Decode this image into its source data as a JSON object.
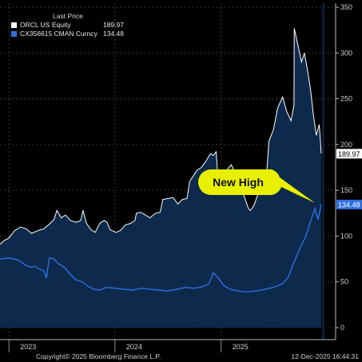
{
  "chart_data": {
    "type": "line",
    "legend_title": "Last Price",
    "series": [
      {
        "name": "ORCL US Equity",
        "last": "189.97",
        "last_label": "189.97",
        "color": "#ffffff",
        "fill": "#0d2a4d",
        "points": [
          [
            "2022-12-01",
            91
          ],
          [
            "2022-12-15",
            95
          ],
          [
            "2023-01-01",
            98
          ],
          [
            "2023-01-20",
            106
          ],
          [
            "2023-02-10",
            110
          ],
          [
            "2023-03-01",
            108
          ],
          [
            "2023-03-20",
            103
          ],
          [
            "2023-04-10",
            106
          ],
          [
            "2023-05-01",
            108
          ],
          [
            "2023-05-20",
            113
          ],
          [
            "2023-06-05",
            118
          ],
          [
            "2023-06-15",
            128
          ],
          [
            "2023-06-30",
            120
          ],
          [
            "2023-07-15",
            123
          ],
          [
            "2023-08-01",
            117
          ],
          [
            "2023-08-20",
            115
          ],
          [
            "2023-09-05",
            117
          ],
          [
            "2023-09-13",
            128
          ],
          [
            "2023-09-25",
            114
          ],
          [
            "2023-10-10",
            107
          ],
          [
            "2023-10-25",
            104
          ],
          [
            "2023-11-10",
            114
          ],
          [
            "2023-11-25",
            117
          ],
          [
            "2023-12-05",
            115
          ],
          [
            "2023-12-15",
            107
          ],
          [
            "2024-01-05",
            104
          ],
          [
            "2024-01-20",
            106
          ],
          [
            "2024-02-05",
            112
          ],
          [
            "2024-02-25",
            114
          ],
          [
            "2024-03-10",
            117
          ],
          [
            "2024-03-15",
            125
          ],
          [
            "2024-03-30",
            126
          ],
          [
            "2024-04-15",
            123
          ],
          [
            "2024-05-01",
            120
          ],
          [
            "2024-05-20",
            125
          ],
          [
            "2024-06-05",
            126
          ],
          [
            "2024-06-14",
            140
          ],
          [
            "2024-07-01",
            141
          ],
          [
            "2024-07-20",
            142
          ],
          [
            "2024-08-05",
            135
          ],
          [
            "2024-08-20",
            140
          ],
          [
            "2024-09-05",
            141
          ],
          [
            "2024-09-15",
            160
          ],
          [
            "2024-09-30",
            167
          ],
          [
            "2024-10-10",
            172
          ],
          [
            "2024-10-25",
            175
          ],
          [
            "2024-11-10",
            182
          ],
          [
            "2024-11-25",
            190
          ],
          [
            "2024-12-05",
            188
          ],
          [
            "2024-12-15",
            192
          ],
          [
            "2024-12-20",
            168
          ],
          [
            "2025-01-05",
            167
          ],
          [
            "2025-01-15",
            165
          ],
          [
            "2025-01-25",
            174
          ],
          [
            "2025-02-05",
            178
          ],
          [
            "2025-02-20",
            168
          ],
          [
            "2025-03-05",
            150
          ],
          [
            "2025-03-20",
            145
          ],
          [
            "2025-04-05",
            130
          ],
          [
            "2025-04-12",
            128
          ],
          [
            "2025-04-25",
            134
          ],
          [
            "2025-05-10",
            148
          ],
          [
            "2025-05-25",
            154
          ],
          [
            "2025-06-05",
            160
          ],
          [
            "2025-06-15",
            204
          ],
          [
            "2025-06-30",
            216
          ],
          [
            "2025-07-15",
            240
          ],
          [
            "2025-08-01",
            252
          ],
          [
            "2025-08-15",
            236
          ],
          [
            "2025-08-30",
            226
          ],
          [
            "2025-09-09",
            243
          ],
          [
            "2025-09-10",
            327
          ],
          [
            "2025-09-25",
            305
          ],
          [
            "2025-10-05",
            290
          ],
          [
            "2025-10-15",
            300
          ],
          [
            "2025-10-25",
            282
          ],
          [
            "2025-11-05",
            260
          ],
          [
            "2025-11-15",
            232
          ],
          [
            "2025-11-25",
            210
          ],
          [
            "2025-12-05",
            222
          ],
          [
            "2025-12-12",
            189.97
          ]
        ]
      },
      {
        "name": "CX356615 CMAN Curncy",
        "last": "134.48",
        "last_label": "134.48",
        "color": "#2f6fe0",
        "fill": "none",
        "points": [
          [
            "2022-12-01",
            75
          ],
          [
            "2023-01-01",
            76
          ],
          [
            "2023-02-01",
            74
          ],
          [
            "2023-03-01",
            68
          ],
          [
            "2023-03-15",
            66
          ],
          [
            "2023-04-01",
            67
          ],
          [
            "2023-04-15",
            64
          ],
          [
            "2023-05-01",
            62
          ],
          [
            "2023-05-10",
            54
          ],
          [
            "2023-05-20",
            76
          ],
          [
            "2023-06-05",
            75
          ],
          [
            "2023-06-20",
            70
          ],
          [
            "2023-07-10",
            66
          ],
          [
            "2023-08-01",
            58
          ],
          [
            "2023-08-20",
            52
          ],
          [
            "2023-09-10",
            50
          ],
          [
            "2023-10-01",
            45
          ],
          [
            "2023-10-20",
            42
          ],
          [
            "2023-11-10",
            41
          ],
          [
            "2023-12-01",
            44
          ],
          [
            "2024-01-01",
            43
          ],
          [
            "2024-02-01",
            42
          ],
          [
            "2024-03-01",
            41
          ],
          [
            "2024-04-01",
            43
          ],
          [
            "2024-05-01",
            42
          ],
          [
            "2024-06-01",
            41
          ],
          [
            "2024-07-01",
            40
          ],
          [
            "2024-08-01",
            42
          ],
          [
            "2024-09-01",
            44
          ],
          [
            "2024-10-01",
            43
          ],
          [
            "2024-11-01",
            45
          ],
          [
            "2024-11-20",
            48
          ],
          [
            "2024-12-05",
            60
          ],
          [
            "2024-12-20",
            55
          ],
          [
            "2025-01-10",
            46
          ],
          [
            "2025-02-01",
            42
          ],
          [
            "2025-03-01",
            40
          ],
          [
            "2025-04-01",
            39
          ],
          [
            "2025-05-01",
            40
          ],
          [
            "2025-06-01",
            42
          ],
          [
            "2025-07-01",
            44
          ],
          [
            "2025-08-01",
            48
          ],
          [
            "2025-08-20",
            55
          ],
          [
            "2025-09-10",
            72
          ],
          [
            "2025-10-01",
            88
          ],
          [
            "2025-10-20",
            100
          ],
          [
            "2025-11-05",
            116
          ],
          [
            "2025-11-20",
            130
          ],
          [
            "2025-12-01",
            118
          ],
          [
            "2025-12-12",
            134.48
          ]
        ]
      }
    ],
    "yticks": [
      "0",
      "50",
      "100",
      "150",
      "200",
      "250",
      "300",
      "350"
    ],
    "ylim": [
      0,
      350
    ],
    "xticks": [
      "2023",
      "2024",
      "2025"
    ],
    "xrange": [
      "2022-12-01",
      "2025-12-12"
    ],
    "annotation": {
      "text": "New High",
      "color": "#e8f000"
    }
  },
  "footer": {
    "copyright": "Copyright© 2025 Bloomberg Finance L.P.",
    "timestamp": "12-Dec-2025 16:44:31"
  }
}
